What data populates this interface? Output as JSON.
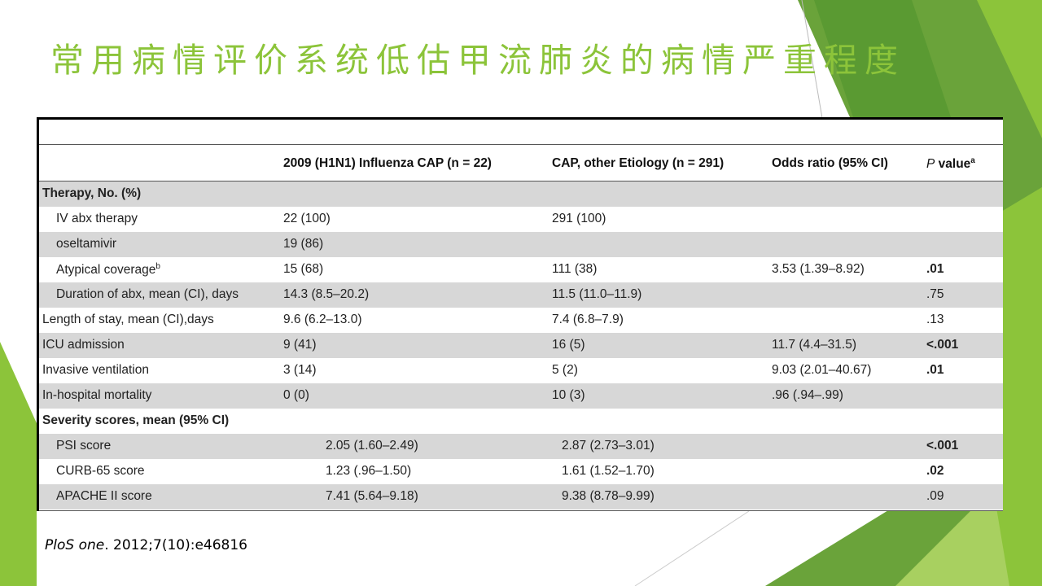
{
  "title": "常用病情评价系统低估甲流肺炎的病情严重程度",
  "table": {
    "headers": {
      "col1": "2009 (H1N1) Influenza CAP (n = 22)",
      "col2": "CAP, other Etiology (n = 291)",
      "col3": "Odds ratio (95% CI)",
      "col4_italic": "P",
      "col4_rest": " value",
      "col4_sup": "a"
    },
    "sections": {
      "therapy": "Therapy, No. (%)",
      "severity": "Severity scores, mean (95% CI)"
    },
    "rows": [
      {
        "label": "IV abx therapy",
        "c1": "22 (100)",
        "c2": "291 (100)",
        "c3": "",
        "p": ""
      },
      {
        "label": "oseltamivir",
        "c1": "19 (86)",
        "c2": "",
        "c3": "",
        "p": ""
      },
      {
        "label": "Atypical coverage",
        "sup": "b",
        "c1": "15 (68)",
        "c2": "111 (38)",
        "c3": "3.53 (1.39–8.92)",
        "p": ".01"
      },
      {
        "label": "Duration of abx, mean (CI), days",
        "c1": "14.3 (8.5–20.2)",
        "c2": "11.5 (11.0–11.9)",
        "c3": "",
        "p": ".75"
      },
      {
        "label": "Length of stay, mean (CI),days",
        "c1": "9.6 (6.2–13.0)",
        "c2": "7.4 (6.8–7.9)",
        "c3": "",
        "p": ".13"
      },
      {
        "label": "ICU admission",
        "c1": "9 (41)",
        "c2": "16 (5)",
        "c3": "11.7 (4.4–31.5)",
        "p": "<.001"
      },
      {
        "label": "Invasive ventilation",
        "c1": "3 (14)",
        "c2": "5 (2)",
        "c3": "9.03 (2.01–40.67)",
        "p": ".01"
      },
      {
        "label": "In-hospital mortality",
        "c1": "0 (0)",
        "c2": "10 (3)",
        "c3": ".96 (.94–.99)",
        "p": ""
      },
      {
        "label": "PSI score",
        "c1": "2.05 (1.60–2.49)",
        "c2": "2.87 (2.73–3.01)",
        "c3": "",
        "p": "<.001"
      },
      {
        "label": "CURB-65 score",
        "c1": "1.23 (.96–1.50)",
        "c2": "1.61 (1.52–1.70)",
        "c3": "",
        "p": ".02"
      },
      {
        "label": "APACHE II score",
        "c1": "7.41 (5.64–9.18)",
        "c2": "9.38 (8.78–9.99)",
        "c3": "",
        "p": ".09"
      }
    ]
  },
  "citation": {
    "journal": "PloS one",
    "rest": ". 2012;7(10):e46816"
  },
  "colors": {
    "title_green": "#8cc43a",
    "accent_green": "#92c83e",
    "dark_green": "#5a9a32",
    "row_shade": "#d7d7d7"
  }
}
